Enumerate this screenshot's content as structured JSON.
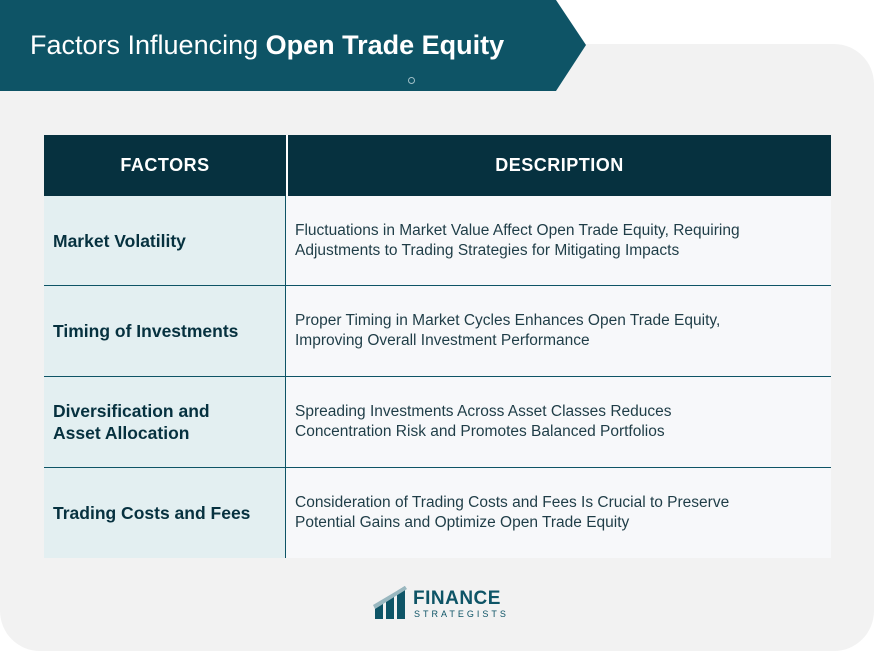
{
  "header": {
    "title_regular": "Factors Influencing ",
    "title_bold": "Open Trade Equity"
  },
  "table": {
    "columns": [
      "FACTORS",
      "DESCRIPTION"
    ],
    "rows": [
      {
        "factor_lines": [
          "Market Volatility"
        ],
        "description_lines": [
          "Fluctuations in Market Value Affect Open Trade Equity, Requiring",
          "Adjustments to Trading Strategies for Mitigating Impacts"
        ]
      },
      {
        "factor_lines": [
          "Timing of Investments"
        ],
        "description_lines": [
          "Proper Timing in Market Cycles Enhances Open Trade Equity,",
          "Improving Overall Investment Performance"
        ]
      },
      {
        "factor_lines": [
          "Diversification and",
          "Asset Allocation"
        ],
        "description_lines": [
          "Spreading Investments Across Asset Classes Reduces",
          "Concentration Risk and Promotes Balanced Portfolios"
        ]
      },
      {
        "factor_lines": [
          "Trading Costs and Fees"
        ],
        "description_lines": [
          "Consideration of Trading Costs and Fees Is Crucial to Preserve",
          "Potential Gains and Optimize Open Trade Equity"
        ]
      }
    ]
  },
  "logo": {
    "name": "FINANCE",
    "subtitle": "STRATEGISTS",
    "icon": "finance-strategists-logo-icon"
  },
  "colors": {
    "banner": "#0e5466",
    "header_cell": "#06313f",
    "factor_cell": "#e3eff1",
    "description_cell": "#f7f8fa",
    "panel": "#f2f2f2"
  }
}
